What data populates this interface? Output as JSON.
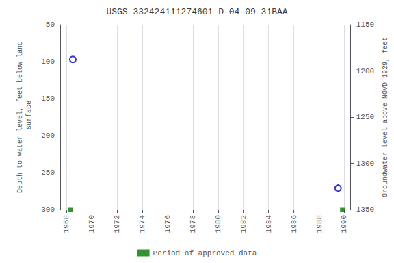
{
  "chart_data": {
    "type": "scatter",
    "title": "USGS 332424111274601 D-04-09 31BAA",
    "ylabel": "Depth to water level, feet below land\n surface",
    "y2label": "Groundwater level above NGVD 1929, feet",
    "xlim": [
      1967.5,
      1990.5
    ],
    "xticks": [
      1968,
      1970,
      1972,
      1974,
      1976,
      1978,
      1980,
      1982,
      1984,
      1986,
      1988,
      1990
    ],
    "ylim": [
      300,
      50
    ],
    "yticks": [
      50,
      100,
      150,
      200,
      250,
      300
    ],
    "y2lim": [
      1350,
      1150
    ],
    "y2ticks": [
      1150,
      1200,
      1250,
      1300,
      1350
    ],
    "grid": true,
    "legend": "bottom",
    "series": [
      {
        "x": [
          1968.5,
          1989.5
        ],
        "values": [
          97,
          271
        ],
        "color": "#0000bb",
        "marker": "circle"
      },
      {
        "name": "Period of approved data",
        "x": [
          1968.3,
          1989.85
        ],
        "values": [
          300,
          300
        ],
        "color": "#007700",
        "marker": "square"
      }
    ]
  }
}
